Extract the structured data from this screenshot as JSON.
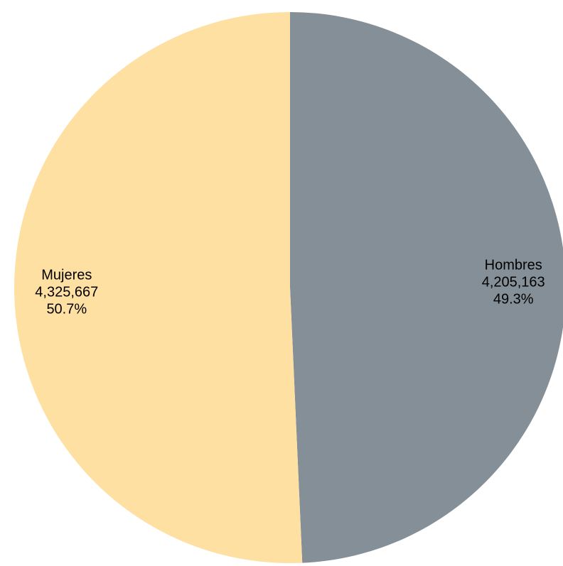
{
  "chart_data": {
    "type": "pie",
    "slices": [
      {
        "label": "Hombres",
        "value": 4205163,
        "value_text": "4,205,163",
        "percent_text": "49.3%",
        "color": "#858f97"
      },
      {
        "label": "Mujeres",
        "value": 4325667,
        "value_text": "4,325,667",
        "percent_text": "50.7%",
        "color": "#fee0a3"
      }
    ],
    "start": "top",
    "direction": "clockwise",
    "legend": "none"
  }
}
